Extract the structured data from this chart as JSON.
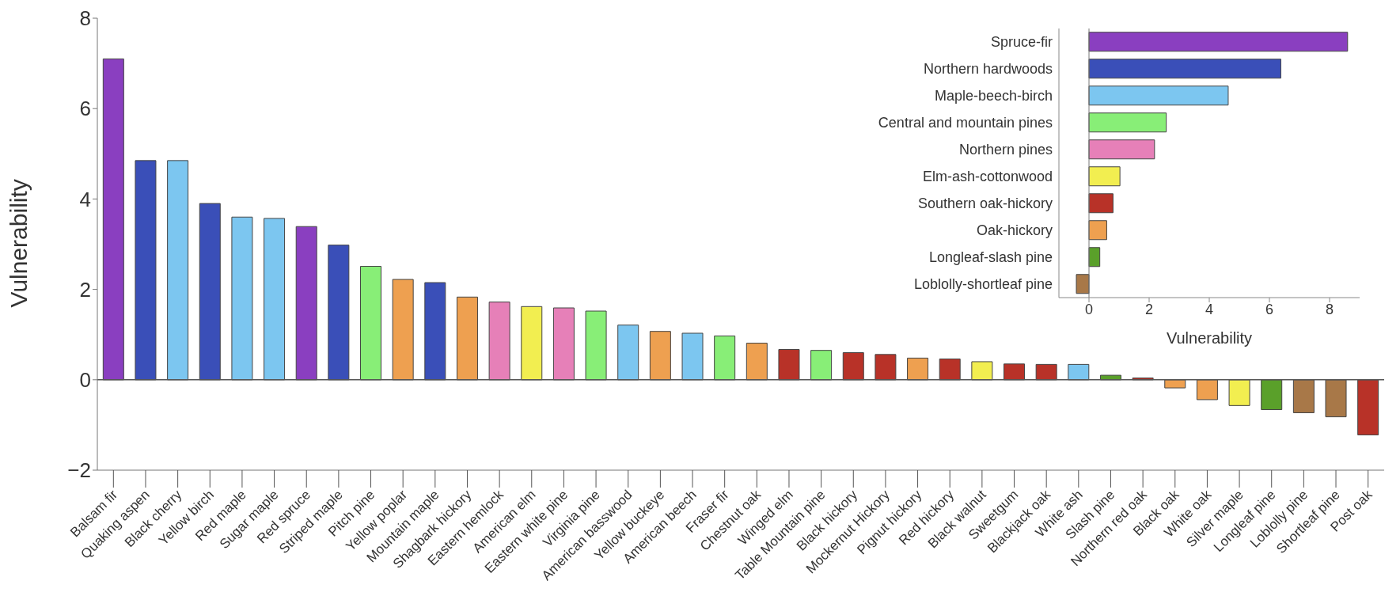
{
  "chart_data": [
    {
      "type": "bar",
      "ylabel": "Vulnerability",
      "ylim": [
        -2,
        8
      ],
      "yticks": [
        -2,
        0,
        2,
        4,
        6,
        8
      ],
      "categories": [
        "Balsam fir",
        "Quaking aspen",
        "Black cherry",
        "Yellow birch",
        "Red maple",
        "Sugar maple",
        "Red spruce",
        "Striped maple",
        "Pitch pine",
        "Yellow poplar",
        "Mountain maple",
        "Shagbark hickory",
        "Eastern hemlock",
        "American elm",
        "Eastern white pine",
        "Virginia pine",
        "American basswood",
        "Yellow buckeye",
        "American beech",
        "Fraser fir",
        "Chestnut oak",
        "Winged elm",
        "Table Mountain pine",
        "Black hickory",
        "Mockernut Hickory",
        "Pignut hickory",
        "Red hickory",
        "Black walnut",
        "Sweetgum",
        "Blackjack oak",
        "White ash",
        "Slash pine",
        "Northern red oak",
        "Black oak",
        "White oak",
        "Silver maple",
        "Longleaf pine",
        "Loblolly pine",
        "Shortleaf pine",
        "Post oak"
      ],
      "values": [
        7.1,
        4.85,
        4.85,
        3.9,
        3.6,
        3.57,
        3.39,
        2.98,
        2.51,
        2.22,
        2.15,
        1.83,
        1.72,
        1.62,
        1.59,
        1.52,
        1.21,
        1.07,
        1.03,
        0.97,
        0.81,
        0.67,
        0.65,
        0.6,
        0.56,
        0.48,
        0.46,
        0.4,
        0.35,
        0.34,
        0.34,
        0.1,
        0.04,
        -0.18,
        -0.44,
        -0.57,
        -0.66,
        -0.73,
        -0.82,
        -1.22
      ],
      "colors": [
        "#8a3fc0",
        "#3a4fb8",
        "#7cc6f0",
        "#3a4fb8",
        "#7cc6f0",
        "#7cc6f0",
        "#8a3fc0",
        "#3a4fb8",
        "#88ee77",
        "#eea050",
        "#3a4fb8",
        "#eea050",
        "#e680b8",
        "#f2ee50",
        "#e680b8",
        "#88ee77",
        "#7cc6f0",
        "#eea050",
        "#7cc6f0",
        "#88ee77",
        "#eea050",
        "#b83228",
        "#88ee77",
        "#b83228",
        "#b83228",
        "#eea050",
        "#b83228",
        "#f2ee50",
        "#b83228",
        "#b83228",
        "#7cc6f0",
        "#5aa02a",
        "#b83228",
        "#eea050",
        "#eea050",
        "#f2ee50",
        "#5aa02a",
        "#a87848",
        "#a87848",
        "#b83228"
      ],
      "ref_lines": [
        {
          "axis": "y",
          "value": 0
        }
      ]
    },
    {
      "type": "bar",
      "orientation": "horizontal",
      "xlabel": "Vulnerability",
      "xlim": [
        -1,
        9
      ],
      "xticks": [
        0,
        2,
        4,
        6,
        8
      ],
      "categories": [
        "Spruce-fir",
        "Northern hardwoods",
        "Maple-beech-birch",
        "Central and mountain pines",
        "Northern pines",
        "Elm-ash-cottonwood",
        "Southern oak-hickory",
        "Oak-hickory",
        "Longleaf-slash pine",
        "Loblolly-shortleaf pine"
      ],
      "values": [
        8.6,
        6.38,
        4.63,
        2.57,
        2.18,
        1.03,
        0.8,
        0.59,
        0.36,
        -0.42
      ],
      "colors": [
        "#8a3fc0",
        "#3a4fb8",
        "#7cc6f0",
        "#88ee77",
        "#e680b8",
        "#f2ee50",
        "#b83228",
        "#eea050",
        "#5aa02a",
        "#a87848"
      ]
    }
  ]
}
